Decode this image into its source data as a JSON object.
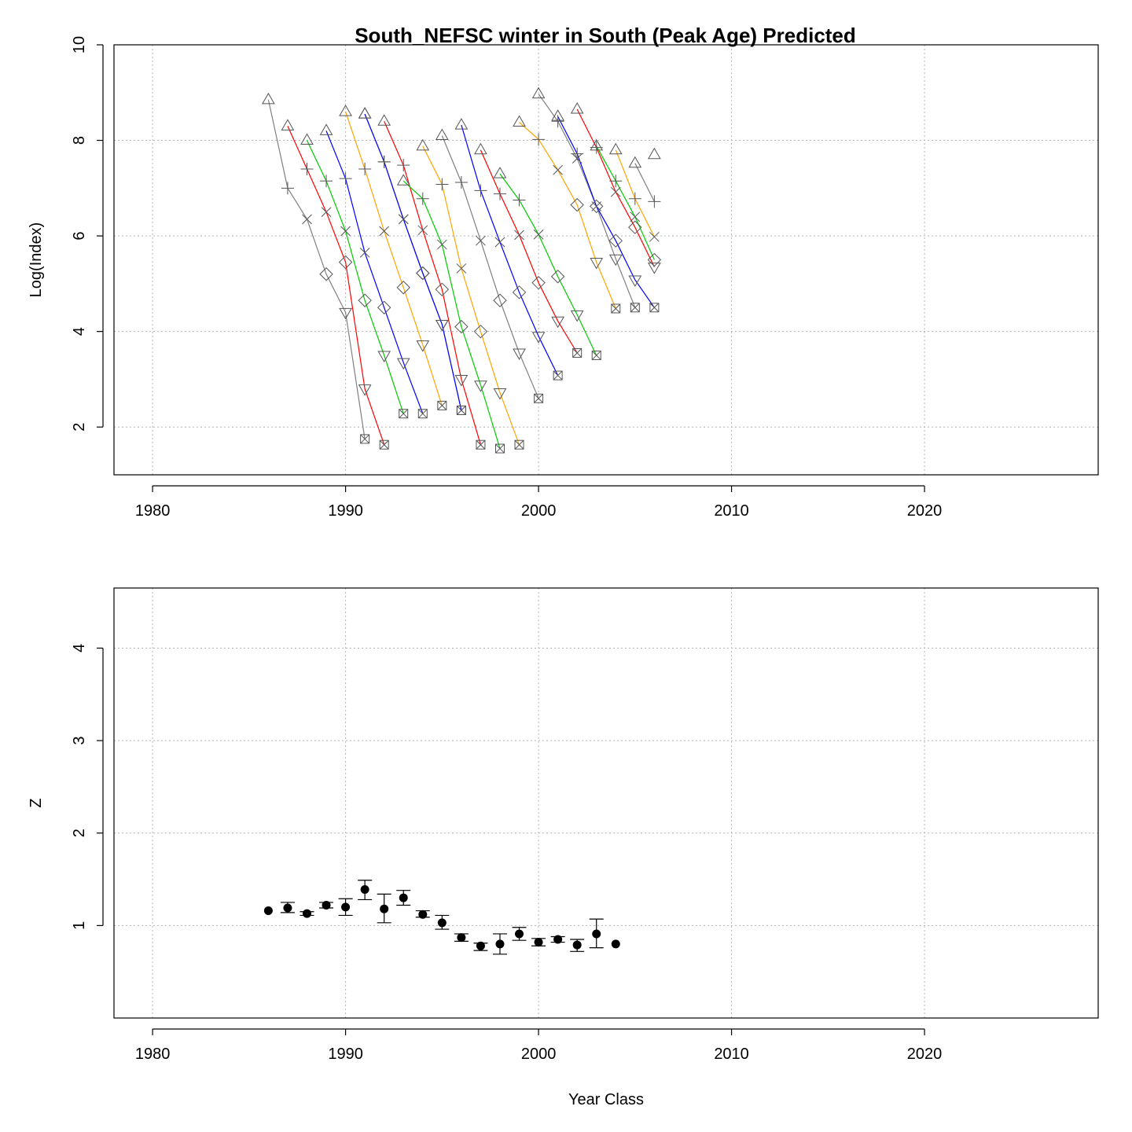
{
  "chart_data": [
    {
      "type": "line",
      "title": "South_NEFSC winter in South (Peak Age) Predicted",
      "xlabel": "",
      "ylabel": "Log(Index)",
      "xlim": [
        1978,
        2029
      ],
      "ylim": [
        1,
        10
      ],
      "xticks": [
        1980,
        1990,
        2000,
        2010,
        2020
      ],
      "yticks": [
        2,
        4,
        6,
        8,
        10
      ],
      "grid": true,
      "legend": "none",
      "age_symbols": [
        "triangle-up",
        "plus",
        "cross",
        "diamond",
        "triangle-down",
        "boxed-x"
      ],
      "series": [
        {
          "color": "#808080",
          "points": [
            [
              1986,
              8.85
            ],
            [
              1987,
              7.0
            ],
            [
              1988,
              6.35
            ],
            [
              1989,
              5.2
            ],
            [
              1990,
              4.4
            ],
            [
              1991,
              1.75
            ]
          ]
        },
        {
          "color": "#ff0000",
          "points": [
            [
              1987,
              8.3
            ],
            [
              1988,
              7.4
            ],
            [
              1989,
              6.5
            ],
            [
              1990,
              5.45
            ],
            [
              1991,
              2.8
            ],
            [
              1992,
              1.63
            ]
          ]
        },
        {
          "color": "#00cc00",
          "points": [
            [
              1988,
              8.0
            ],
            [
              1989,
              7.15
            ],
            [
              1990,
              6.1
            ],
            [
              1991,
              4.65
            ],
            [
              1992,
              3.5
            ],
            [
              1993,
              2.28
            ]
          ]
        },
        {
          "color": "#0000ff",
          "points": [
            [
              1989,
              8.2
            ],
            [
              1990,
              7.2
            ],
            [
              1991,
              5.65
            ],
            [
              1992,
              4.5
            ],
            [
              1993,
              3.35
            ],
            [
              1994,
              2.28
            ]
          ]
        },
        {
          "color": "#ffa500",
          "points": [
            [
              1990,
              8.6
            ],
            [
              1991,
              7.4
            ],
            [
              1992,
              6.1
            ],
            [
              1993,
              4.92
            ],
            [
              1994,
              3.72
            ],
            [
              1995,
              2.45
            ]
          ]
        },
        {
          "color": "#808080",
          "points": [
            [
              1991,
              8.55
            ],
            [
              1992,
              7.55
            ],
            [
              1993,
              6.35
            ],
            [
              1994,
              5.22
            ],
            [
              1995,
              4.15
            ],
            [
              1996,
              2.35
            ]
          ]
        },
        {
          "color": "#0000ff",
          "points": [
            [
              1991,
              8.55
            ],
            [
              1992,
              7.55
            ],
            [
              1993,
              6.35
            ],
            [
              1994,
              5.22
            ],
            [
              1995,
              4.15
            ],
            [
              1996,
              2.35
            ]
          ]
        },
        {
          "color": "#ff0000",
          "points": [
            [
              1992,
              8.4
            ],
            [
              1993,
              7.48
            ],
            [
              1994,
              6.12
            ],
            [
              1995,
              4.88
            ],
            [
              1996,
              3.0
            ],
            [
              1997,
              1.63
            ]
          ]
        },
        {
          "color": "#00cc00",
          "points": [
            [
              1993,
              7.15
            ],
            [
              1994,
              6.78
            ],
            [
              1995,
              5.82
            ],
            [
              1996,
              4.1
            ],
            [
              1997,
              2.88
            ],
            [
              1998,
              1.55
            ]
          ]
        },
        {
          "color": "#ffa500",
          "points": [
            [
              1994,
              7.88
            ],
            [
              1995,
              7.08
            ],
            [
              1996,
              5.32
            ],
            [
              1997,
              4.0
            ],
            [
              1998,
              2.72
            ],
            [
              1999,
              1.63
            ]
          ]
        },
        {
          "color": "#808080",
          "points": [
            [
              1995,
              8.1
            ],
            [
              1996,
              7.12
            ],
            [
              1997,
              5.9
            ],
            [
              1998,
              4.65
            ],
            [
              1999,
              3.55
            ],
            [
              2000,
              2.6
            ]
          ]
        },
        {
          "color": "#0000ff",
          "points": [
            [
              1996,
              8.32
            ],
            [
              1997,
              6.95
            ],
            [
              1998,
              5.87
            ],
            [
              1999,
              4.82
            ],
            [
              2000,
              3.9
            ],
            [
              2001,
              3.08
            ]
          ]
        },
        {
          "color": "#ff0000",
          "points": [
            [
              1997,
              7.8
            ],
            [
              1998,
              6.88
            ],
            [
              1999,
              6.02
            ],
            [
              2000,
              5.02
            ],
            [
              2001,
              4.22
            ],
            [
              2002,
              3.55
            ]
          ]
        },
        {
          "color": "#00cc00",
          "points": [
            [
              1998,
              7.3
            ],
            [
              1999,
              6.75
            ],
            [
              2000,
              6.03
            ],
            [
              2001,
              5.15
            ],
            [
              2002,
              4.35
            ],
            [
              2003,
              3.5
            ]
          ]
        },
        {
          "color": "#ffa500",
          "points": [
            [
              1999,
              8.38
            ],
            [
              2000,
              8.02
            ],
            [
              2001,
              7.38
            ],
            [
              2002,
              6.65
            ],
            [
              2003,
              5.45
            ],
            [
              2004,
              4.48
            ]
          ]
        },
        {
          "color": "#808080",
          "points": [
            [
              2000,
              8.97
            ],
            [
              2001,
              8.4
            ],
            [
              2002,
              7.62
            ],
            [
              2003,
              6.62
            ],
            [
              2004,
              5.52
            ],
            [
              2005,
              4.5
            ]
          ]
        },
        {
          "color": "#0000ff",
          "points": [
            [
              2001,
              8.5
            ],
            [
              2002,
              7.72
            ],
            [
              2003,
              6.62
            ],
            [
              2004,
              5.9
            ],
            [
              2005,
              5.08
            ],
            [
              2006,
              4.5
            ]
          ]
        },
        {
          "color": "#ff0000",
          "points": [
            [
              2002,
              8.65
            ],
            [
              2003,
              7.85
            ],
            [
              2004,
              6.92
            ],
            [
              2005,
              6.18
            ],
            [
              2006,
              5.35
            ]
          ]
        },
        {
          "color": "#00cc00",
          "points": [
            [
              2003,
              7.88
            ],
            [
              2004,
              7.15
            ],
            [
              2005,
              6.4
            ],
            [
              2006,
              5.5
            ]
          ]
        },
        {
          "color": "#ffa500",
          "points": [
            [
              2004,
              7.8
            ],
            [
              2005,
              6.78
            ],
            [
              2006,
              5.98
            ]
          ]
        },
        {
          "color": "#808080",
          "points": [
            [
              2005,
              7.52
            ],
            [
              2006,
              6.72
            ]
          ]
        },
        {
          "color": "#808080",
          "points": [
            [
              2006,
              7.7
            ]
          ]
        }
      ]
    },
    {
      "type": "scatter",
      "title": "",
      "xlabel": "Year Class",
      "ylabel": "Z",
      "xlim": [
        1978,
        2029
      ],
      "ylim": [
        0,
        4.65
      ],
      "xticks": [
        1980,
        1990,
        2000,
        2010,
        2020
      ],
      "yticks": [
        1,
        2,
        3,
        4
      ],
      "grid": true,
      "legend": "none",
      "points": [
        {
          "x": 1986,
          "y": 1.16,
          "lo": 1.16,
          "hi": 1.16
        },
        {
          "x": 1987,
          "y": 1.19,
          "lo": 1.14,
          "hi": 1.25
        },
        {
          "x": 1988,
          "y": 1.13,
          "lo": 1.11,
          "hi": 1.15
        },
        {
          "x": 1989,
          "y": 1.22,
          "lo": 1.19,
          "hi": 1.25
        },
        {
          "x": 1990,
          "y": 1.2,
          "lo": 1.11,
          "hi": 1.29
        },
        {
          "x": 1991,
          "y": 1.39,
          "lo": 1.28,
          "hi": 1.49
        },
        {
          "x": 1992,
          "y": 1.18,
          "lo": 1.03,
          "hi": 1.34
        },
        {
          "x": 1993,
          "y": 1.3,
          "lo": 1.22,
          "hi": 1.38
        },
        {
          "x": 1994,
          "y": 1.12,
          "lo": 1.09,
          "hi": 1.16
        },
        {
          "x": 1995,
          "y": 1.03,
          "lo": 0.96,
          "hi": 1.11
        },
        {
          "x": 1996,
          "y": 0.87,
          "lo": 0.83,
          "hi": 0.91
        },
        {
          "x": 1997,
          "y": 0.78,
          "lo": 0.73,
          "hi": 0.81
        },
        {
          "x": 1998,
          "y": 0.8,
          "lo": 0.69,
          "hi": 0.91
        },
        {
          "x": 1999,
          "y": 0.91,
          "lo": 0.84,
          "hi": 0.98
        },
        {
          "x": 2000,
          "y": 0.82,
          "lo": 0.78,
          "hi": 0.86
        },
        {
          "x": 2001,
          "y": 0.85,
          "lo": 0.82,
          "hi": 0.88
        },
        {
          "x": 2002,
          "y": 0.79,
          "lo": 0.72,
          "hi": 0.85
        },
        {
          "x": 2003,
          "y": 0.91,
          "lo": 0.76,
          "hi": 1.07
        },
        {
          "x": 2004,
          "y": 0.8,
          "lo": 0.8,
          "hi": 0.8
        }
      ]
    }
  ]
}
